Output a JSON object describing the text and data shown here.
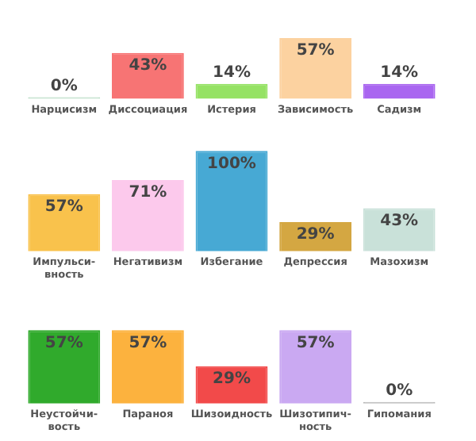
{
  "chart_data": [
    {
      "type": "bar",
      "categories": [
        "Нарцисизм",
        "Диссоциация",
        "Истерия",
        "Зависимость",
        "Садизм"
      ],
      "values": [
        0,
        43,
        14,
        57,
        14
      ],
      "colors": [
        "#b8dcc4",
        "#f77474",
        "#95e264",
        "#fcd2a0",
        "#a966f0"
      ],
      "data_labels": true,
      "value_labels": [
        "0%",
        "43%",
        "14%",
        "57%",
        "14%"
      ],
      "tick_labels": "x",
      "legend": false
    },
    {
      "type": "bar",
      "categories": [
        "Импульси-вность",
        "Негативизм",
        "Избегание",
        "Депрессия",
        "Мазохизм"
      ],
      "values": [
        57,
        71,
        100,
        29,
        43
      ],
      "colors": [
        "#f9c24c",
        "#fcc9ec",
        "#47a9d4",
        "#d4a742",
        "#c9e1d9"
      ],
      "data_labels": true,
      "value_labels": [
        "57%",
        "71%",
        "100%",
        "29%",
        "43%"
      ],
      "tick_labels": "x",
      "legend": false
    },
    {
      "type": "bar",
      "categories": [
        "Неустойчи-вость",
        "Параноя",
        "Шизоидность",
        "Шизотипич-ность",
        "Гипомания"
      ],
      "values": [
        57,
        57,
        29,
        57,
        0
      ],
      "colors": [
        "#30aa2c",
        "#fcb23e",
        "#f24a4a",
        "#caa9f2",
        "#b8b8b8"
      ],
      "data_labels": true,
      "value_labels": [
        "57%",
        "57%",
        "29%",
        "57%",
        "0%"
      ],
      "tick_labels": "x",
      "legend": false
    }
  ]
}
